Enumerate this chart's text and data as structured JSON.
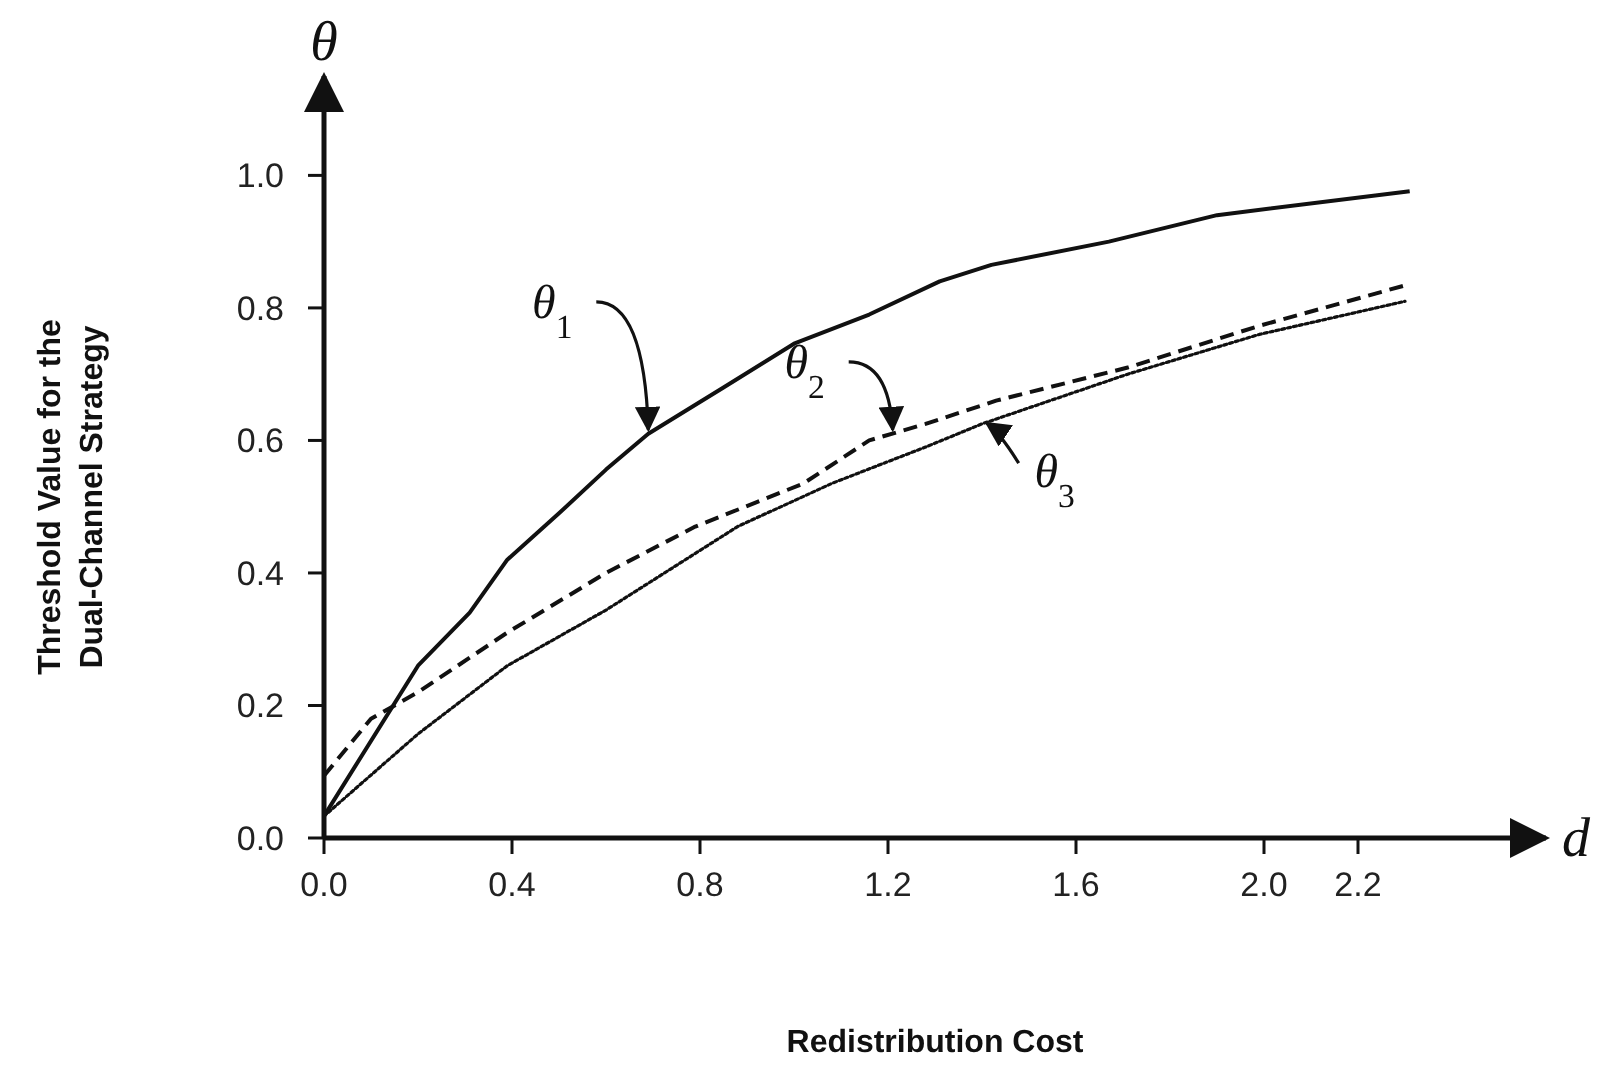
{
  "chart_data": {
    "type": "line",
    "xlabel": "Redistribution Cost",
    "ylabel": "Threshold Value for the Dual-Channel Strategy",
    "xlim": [
      0,
      2.6
    ],
    "ylim": [
      0,
      1.15
    ],
    "xticks": [
      {
        "value": 0,
        "label": "0.0"
      },
      {
        "value": 0.4,
        "label": "0.4"
      },
      {
        "value": 0.8,
        "label": "0.8"
      },
      {
        "value": 1.2,
        "label": "1.2"
      },
      {
        "value": 1.6,
        "label": "1.6"
      },
      {
        "value": 2.0,
        "label": "2.0"
      },
      {
        "value": 2.2,
        "label": "2.2"
      }
    ],
    "yticks": [
      {
        "value": 0,
        "label": "0.0"
      },
      {
        "value": 0.2,
        "label": "0.2"
      },
      {
        "value": 0.4,
        "label": "0.4"
      },
      {
        "value": 0.6,
        "label": "0.6"
      },
      {
        "value": 0.8,
        "label": "0.8"
      },
      {
        "value": 1.0,
        "label": "1.0"
      }
    ],
    "grid": false,
    "marker": "none",
    "series": [
      {
        "color": "#111111",
        "line_style": "solid",
        "x": [
          0,
          0.2,
          0.31,
          0.39,
          0.5,
          0.6,
          0.69,
          0.85,
          1.0,
          1.16,
          1.31,
          1.42,
          1.67,
          1.9,
          2.31
        ],
        "values": [
          0.033,
          0.26,
          0.34,
          0.42,
          0.49,
          0.556,
          0.61,
          0.68,
          0.746,
          0.79,
          0.84,
          0.865,
          0.9,
          0.94,
          0.976
        ]
      },
      {
        "color": "#111111",
        "line_style": "dashed",
        "x": [
          0,
          0.1,
          0.2,
          0.39,
          0.6,
          0.79,
          1.02,
          1.16,
          1.28,
          1.43,
          1.71,
          1.99,
          2.3
        ],
        "values": [
          0.094,
          0.18,
          0.22,
          0.31,
          0.4,
          0.47,
          0.535,
          0.6,
          0.625,
          0.66,
          0.71,
          0.773,
          0.834
        ]
      },
      {
        "color": "#111111",
        "line_style": "dotted",
        "x": [
          0,
          0.2,
          0.39,
          0.6,
          0.88,
          1.08,
          1.28,
          1.4,
          1.71,
          1.99,
          2.3
        ],
        "values": [
          0.033,
          0.157,
          0.26,
          0.344,
          0.47,
          0.535,
          0.59,
          0.625,
          0.7,
          0.76,
          0.81
        ]
      }
    ],
    "annotations": [
      {
        "text": "θ$_{1}$",
        "x": 0.69,
        "y": 0.61
      },
      {
        "text": "θ$_{2}$",
        "x": 1.21,
        "y": 0.61
      },
      {
        "text": "θ$_{3}$",
        "x": 1.41,
        "y": 0.62
      },
      "θ",
      "d"
    ]
  }
}
